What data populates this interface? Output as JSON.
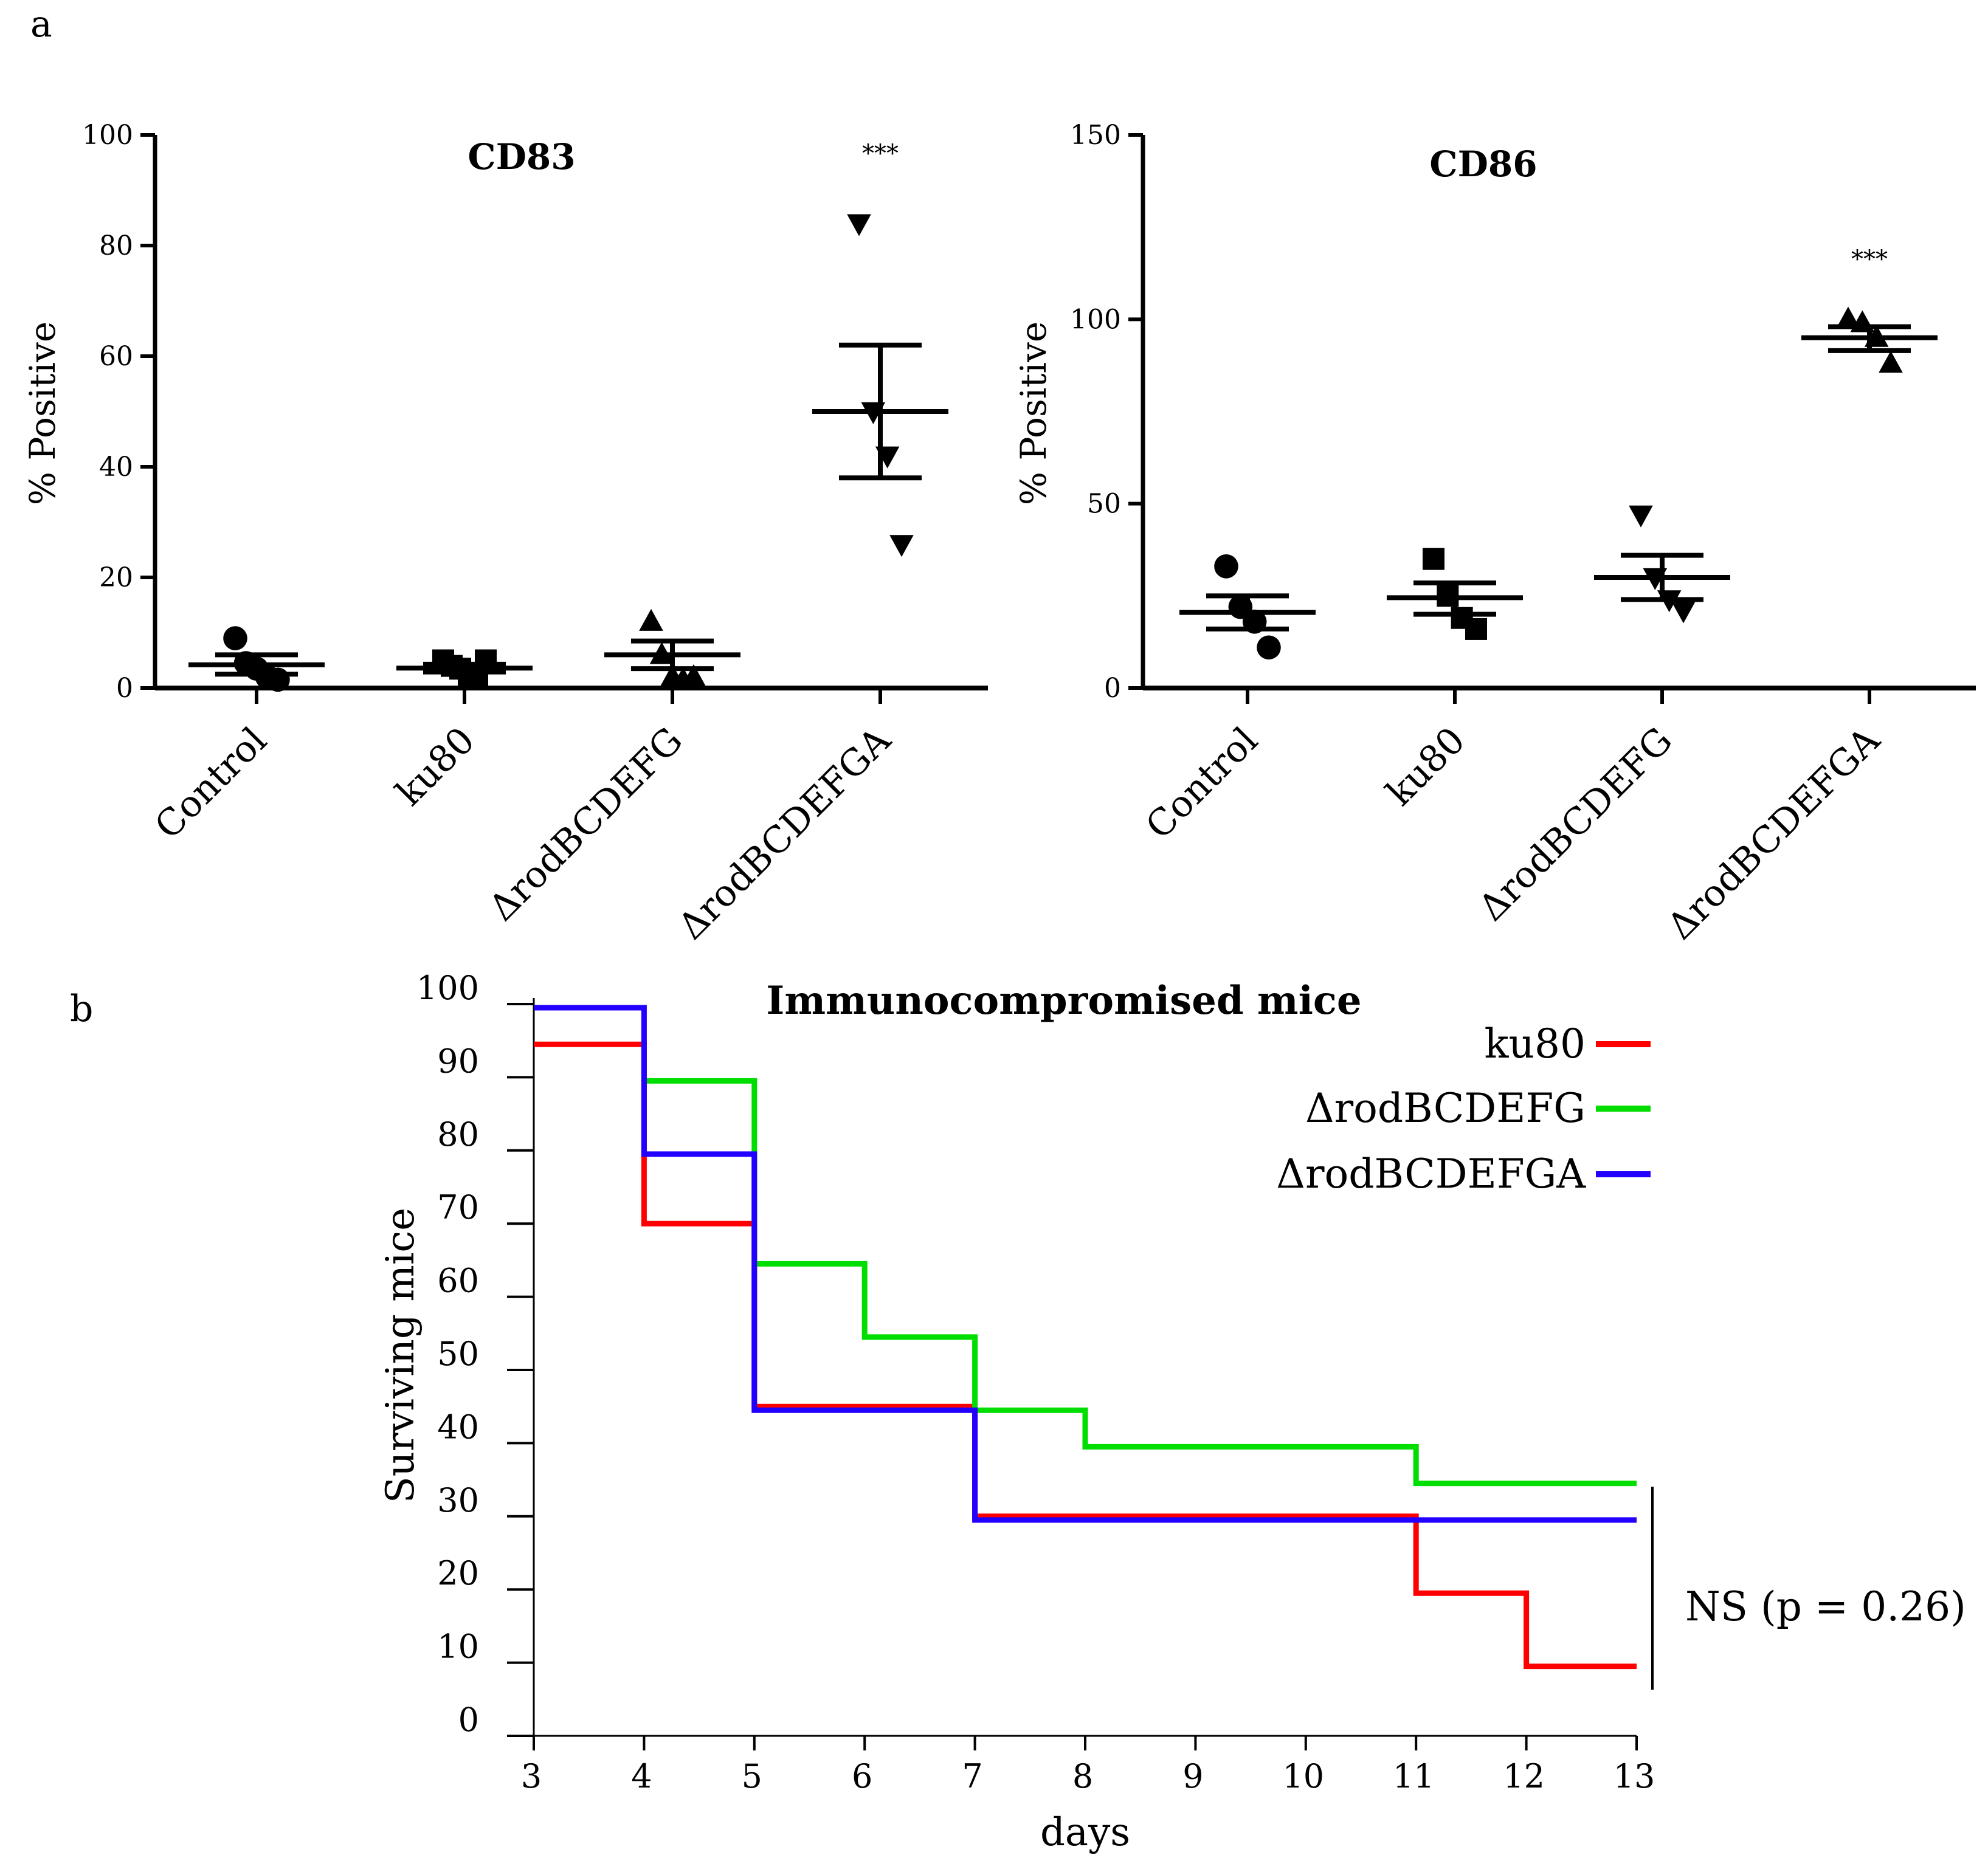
{
  "panel_labels": [
    "a",
    "b"
  ],
  "chart_data": [
    {
      "type": "scatter",
      "title": "CD83",
      "ylabel": "% Positive",
      "ylim": [
        0,
        100
      ],
      "yticks": [
        "0",
        "20",
        "40",
        "60",
        "80",
        "100"
      ],
      "categories": [
        "Control",
        "ku80",
        "ΔrodBCDEFG",
        "ΔrodBCDEFGA"
      ],
      "groups": [
        {
          "name": "Control",
          "marker": "circle",
          "points": [
            9,
            4.5,
            3.5,
            2,
            1.5
          ],
          "mean": 4.2,
          "sem_upper": 6,
          "sem_lower": 2.5
        },
        {
          "name": "ku80",
          "marker": "square",
          "points": [
            5,
            4,
            3.5,
            2,
            2,
            5
          ],
          "mean": 3.6,
          "sem_upper": 4.3,
          "sem_lower": 2.9
        },
        {
          "name": "ΔrodBCDEFG",
          "marker": "triangle-up",
          "points": [
            12,
            6,
            2,
            1.5,
            2
          ],
          "mean": 6,
          "sem_upper": 8.5,
          "sem_lower": 3.5
        },
        {
          "name": "ΔrodBCDEFGA",
          "marker": "triangle-down",
          "points": [
            84,
            50,
            42,
            26
          ],
          "mean": 50,
          "sem_upper": 62,
          "sem_lower": 38,
          "significance": "***"
        }
      ]
    },
    {
      "type": "scatter",
      "title": "CD86",
      "ylabel": "% Positive",
      "ylim": [
        0,
        150
      ],
      "yticks": [
        "0",
        "50",
        "100",
        "150"
      ],
      "categories": [
        "Control",
        "ku80",
        "ΔrodBCDEFG",
        "ΔrodBCDEFGA"
      ],
      "groups": [
        {
          "name": "Control",
          "marker": "circle",
          "points": [
            33,
            22,
            18,
            11
          ],
          "mean": 20.5,
          "sem_upper": 25,
          "sem_lower": 16
        },
        {
          "name": "ku80",
          "marker": "square",
          "points": [
            35,
            25,
            19,
            16
          ],
          "mean": 24.5,
          "sem_upper": 28.5,
          "sem_lower": 20
        },
        {
          "name": "ΔrodBCDEFG",
          "marker": "triangle-down",
          "points": [
            47,
            30,
            24,
            21
          ],
          "mean": 30,
          "sem_upper": 36,
          "sem_lower": 24
        },
        {
          "name": "ΔrodBCDEFGA",
          "marker": "triangle-up",
          "points": [
            100,
            99,
            95,
            88
          ],
          "mean": 95,
          "sem_upper": 98,
          "sem_lower": 91.5,
          "significance": "***"
        }
      ]
    },
    {
      "type": "line",
      "step": true,
      "title": "Immunocompromised mice",
      "xlabel": "days",
      "ylabel": "Surviving mice",
      "xlim": [
        3,
        13
      ],
      "ylim": [
        0,
        100
      ],
      "xticks": [
        "3",
        "4",
        "5",
        "6",
        "7",
        "8",
        "9",
        "10",
        "11",
        "12",
        "13"
      ],
      "yticks": [
        "0",
        "10",
        "20",
        "30",
        "40",
        "50",
        "60",
        "70",
        "80",
        "90",
        "100"
      ],
      "legend_position": "top-right",
      "series": [
        {
          "name": "ku80",
          "color": "#ff0000",
          "x": [
            3,
            4,
            5,
            7,
            11,
            12,
            13
          ],
          "y": [
            94.5,
            70,
            45,
            30,
            19.5,
            9.5,
            9.5
          ]
        },
        {
          "name": "ΔrodBCDEFG",
          "color": "#00dd00",
          "x": [
            4,
            5,
            6,
            7,
            8,
            11,
            13
          ],
          "y": [
            89.5,
            64.5,
            54.5,
            44.5,
            39.5,
            34.5,
            34.5
          ]
        },
        {
          "name": "ΔrodBCDEFGA",
          "color": "#2200ff",
          "x": [
            3,
            4,
            5,
            7,
            13
          ],
          "y": [
            99.5,
            79.5,
            44.5,
            29.5,
            29.5
          ]
        }
      ],
      "annotation": "NS (p = 0.26)"
    }
  ]
}
